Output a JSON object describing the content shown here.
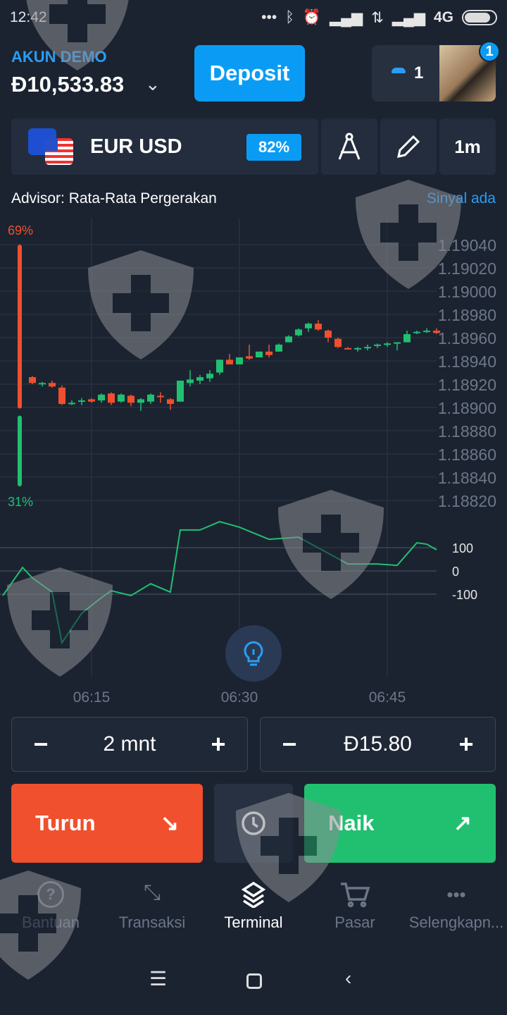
{
  "status_bar": {
    "time": "12:42",
    "network": "4G",
    "icons": [
      "more-dots-icon",
      "bluetooth-icon",
      "alarm-icon",
      "signal-icon",
      "data-arrows-icon",
      "signal-icon",
      "battery-icon"
    ]
  },
  "account": {
    "label": "AKUN DEMO",
    "balance": "Đ10,533.83"
  },
  "header": {
    "deposit_label": "Deposit",
    "gift_count": "1",
    "notification_badge": "1"
  },
  "asset": {
    "name": "EUR USD",
    "payout": "82%",
    "timeframe": "1m"
  },
  "advisor": {
    "text": "Advisor: Rata-Rata Pergerakan",
    "signal": "Sinyal ada"
  },
  "colors": {
    "up": "#20c070",
    "down": "#f0502d",
    "accent": "#0a9cf5",
    "background": "#1b2331"
  },
  "chart_data": [
    {
      "type": "candlestick",
      "price_ticks": [
        "1.19040",
        "1.19020",
        "1.19000",
        "1.18980",
        "1.18960",
        "1.18940",
        "1.18920",
        "1.18900",
        "1.18880",
        "1.18860",
        "1.18840",
        "1.18820"
      ],
      "ylim": [
        1.1882,
        1.1904
      ],
      "time_ticks": [
        "06:15",
        "06:30",
        "06:45"
      ],
      "grid": true,
      "sentiment": {
        "down_label": "69%",
        "up_label": "31%",
        "down": 69,
        "up": 31
      },
      "candles": [
        {
          "t": "06:09",
          "o": 1.18926,
          "h": 1.18927,
          "l": 1.1892,
          "c": 1.18921
        },
        {
          "t": "06:10",
          "o": 1.1892,
          "h": 1.18922,
          "l": 1.18918,
          "c": 1.18921
        },
        {
          "t": "06:11",
          "o": 1.18921,
          "h": 1.18923,
          "l": 1.18917,
          "c": 1.18918
        },
        {
          "t": "06:12",
          "o": 1.18917,
          "h": 1.18919,
          "l": 1.18902,
          "c": 1.18903
        },
        {
          "t": "06:13",
          "o": 1.18903,
          "h": 1.18906,
          "l": 1.18902,
          "c": 1.18904
        },
        {
          "t": "06:14",
          "o": 1.18905,
          "h": 1.18908,
          "l": 1.18902,
          "c": 1.18906
        },
        {
          "t": "06:15",
          "o": 1.18907,
          "h": 1.18908,
          "l": 1.18904,
          "c": 1.18905
        },
        {
          "t": "06:16",
          "o": 1.18906,
          "h": 1.18912,
          "l": 1.18904,
          "c": 1.18911
        },
        {
          "t": "06:17",
          "o": 1.18912,
          "h": 1.18913,
          "l": 1.18902,
          "c": 1.18904
        },
        {
          "t": "06:18",
          "o": 1.18905,
          "h": 1.18912,
          "l": 1.18904,
          "c": 1.18911
        },
        {
          "t": "06:19",
          "o": 1.1891,
          "h": 1.18911,
          "l": 1.18901,
          "c": 1.18904
        },
        {
          "t": "06:20",
          "o": 1.18904,
          "h": 1.18908,
          "l": 1.18897,
          "c": 1.18907
        },
        {
          "t": "06:21",
          "o": 1.18905,
          "h": 1.18912,
          "l": 1.18903,
          "c": 1.18911
        },
        {
          "t": "06:22",
          "o": 1.1891,
          "h": 1.18913,
          "l": 1.18904,
          "c": 1.18909
        },
        {
          "t": "06:23",
          "o": 1.18907,
          "h": 1.18908,
          "l": 1.18898,
          "c": 1.18903
        },
        {
          "t": "06:24",
          "o": 1.18905,
          "h": 1.18923,
          "l": 1.18905,
          "c": 1.18923
        },
        {
          "t": "06:25",
          "o": 1.18921,
          "h": 1.18932,
          "l": 1.18918,
          "c": 1.18924
        },
        {
          "t": "06:26",
          "o": 1.18923,
          "h": 1.18928,
          "l": 1.1892,
          "c": 1.18926
        },
        {
          "t": "06:27",
          "o": 1.18925,
          "h": 1.18932,
          "l": 1.18922,
          "c": 1.18929
        },
        {
          "t": "06:28",
          "o": 1.1893,
          "h": 1.18941,
          "l": 1.18928,
          "c": 1.18941
        },
        {
          "t": "06:29",
          "o": 1.18941,
          "h": 1.18946,
          "l": 1.18937,
          "c": 1.18937
        },
        {
          "t": "06:30",
          "o": 1.18937,
          "h": 1.18943,
          "l": 1.18937,
          "c": 1.18943
        },
        {
          "t": "06:31",
          "o": 1.18944,
          "h": 1.18954,
          "l": 1.18941,
          "c": 1.18942
        },
        {
          "t": "06:32",
          "o": 1.18943,
          "h": 1.18948,
          "l": 1.18943,
          "c": 1.18948
        },
        {
          "t": "06:33",
          "o": 1.18948,
          "h": 1.18954,
          "l": 1.18943,
          "c": 1.18945
        },
        {
          "t": "06:34",
          "o": 1.18948,
          "h": 1.18955,
          "l": 1.18948,
          "c": 1.18954
        },
        {
          "t": "06:35",
          "o": 1.18956,
          "h": 1.18962,
          "l": 1.18956,
          "c": 1.18961
        },
        {
          "t": "06:36",
          "o": 1.18962,
          "h": 1.18968,
          "l": 1.18961,
          "c": 1.18967
        },
        {
          "t": "06:37",
          "o": 1.18968,
          "h": 1.18973,
          "l": 1.18965,
          "c": 1.18972
        },
        {
          "t": "06:38",
          "o": 1.18972,
          "h": 1.18975,
          "l": 1.18966,
          "c": 1.18967
        },
        {
          "t": "06:39",
          "o": 1.18966,
          "h": 1.18967,
          "l": 1.18956,
          "c": 1.1896
        },
        {
          "t": "06:40",
          "o": 1.18959,
          "h": 1.1896,
          "l": 1.18951,
          "c": 1.18952
        },
        {
          "t": "06:41",
          "o": 1.18951,
          "h": 1.18952,
          "l": 1.1895,
          "c": 1.1895
        },
        {
          "t": "06:42",
          "o": 1.1895,
          "h": 1.18952,
          "l": 1.18948,
          "c": 1.18951
        },
        {
          "t": "06:43",
          "o": 1.18951,
          "h": 1.18954,
          "l": 1.18949,
          "c": 1.18952
        },
        {
          "t": "06:44",
          "o": 1.18953,
          "h": 1.18955,
          "l": 1.18951,
          "c": 1.18954
        },
        {
          "t": "06:45",
          "o": 1.18954,
          "h": 1.18956,
          "l": 1.18952,
          "c": 1.18955
        },
        {
          "t": "06:46",
          "o": 1.18955,
          "h": 1.18956,
          "l": 1.18949,
          "c": 1.18956
        },
        {
          "t": "06:47",
          "o": 1.18956,
          "h": 1.18966,
          "l": 1.18956,
          "c": 1.18963
        },
        {
          "t": "06:48",
          "o": 1.18964,
          "h": 1.18966,
          "l": 1.18963,
          "c": 1.18965
        },
        {
          "t": "06:49",
          "o": 1.18965,
          "h": 1.18968,
          "l": 1.18964,
          "c": 1.18966
        },
        {
          "t": "06:50",
          "o": 1.18966,
          "h": 1.18968,
          "l": 1.18963,
          "c": 1.18964
        }
      ]
    },
    {
      "type": "line",
      "y_ticks": [
        "100",
        "0",
        "-100"
      ],
      "ylim": [
        -100,
        100
      ],
      "points": [
        {
          "t": "06:06",
          "v": -106
        },
        {
          "t": "06:08",
          "v": 15
        },
        {
          "t": "06:09",
          "v": -30
        },
        {
          "t": "06:11",
          "v": -91
        },
        {
          "t": "06:12",
          "v": -309
        },
        {
          "t": "06:14",
          "v": -182
        },
        {
          "t": "06:16",
          "v": -115
        },
        {
          "t": "06:17",
          "v": -85
        },
        {
          "t": "06:19",
          "v": -106
        },
        {
          "t": "06:21",
          "v": -55
        },
        {
          "t": "06:23",
          "v": -91
        },
        {
          "t": "06:24",
          "v": 176
        },
        {
          "t": "06:26",
          "v": 176
        },
        {
          "t": "06:28",
          "v": 212
        },
        {
          "t": "06:30",
          "v": 188
        },
        {
          "t": "06:33",
          "v": 136
        },
        {
          "t": "06:36",
          "v": 145
        },
        {
          "t": "06:39",
          "v": 76
        },
        {
          "t": "06:41",
          "v": 30
        },
        {
          "t": "06:44",
          "v": 30
        },
        {
          "t": "06:46",
          "v": 24
        },
        {
          "t": "06:48",
          "v": 121
        },
        {
          "t": "06:49",
          "v": 115
        },
        {
          "t": "06:50",
          "v": 91
        }
      ]
    }
  ],
  "trade": {
    "duration": "2 mnt",
    "amount": "Đ15.80",
    "minus": "−",
    "plus": "+",
    "down_label": "Turun",
    "up_label": "Naik"
  },
  "bottom_nav": [
    {
      "label": "Bantuan"
    },
    {
      "label": "Transaksi"
    },
    {
      "label": "Terminal"
    },
    {
      "label": "Pasar"
    },
    {
      "label": "Selengkapn..."
    }
  ]
}
